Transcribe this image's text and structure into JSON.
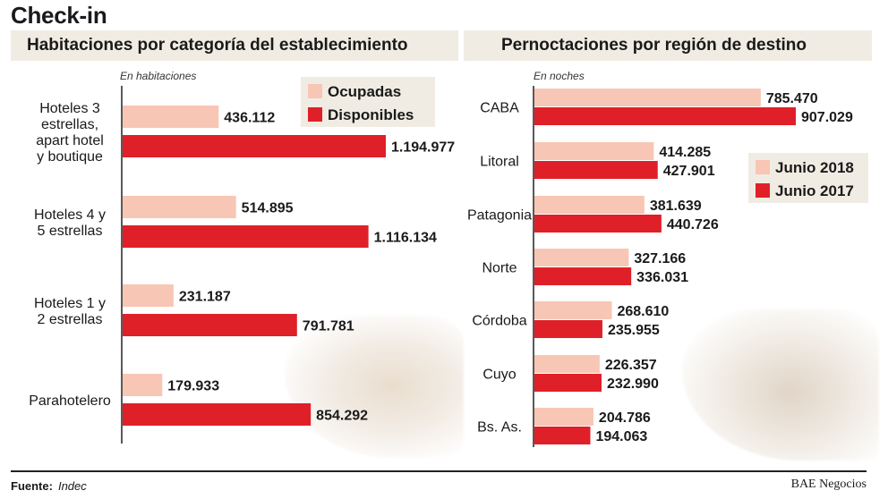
{
  "title": "Check-in",
  "colors": {
    "light": "#f8c6b4",
    "dark": "#e02028"
  },
  "chart_data": [
    {
      "type": "bar",
      "orientation": "horizontal",
      "title": "Habitaciones por categoría del establecimiento",
      "unit_note": "En habitaciones",
      "categories": [
        [
          "Hoteles 3",
          "estrellas,",
          "apart hotel",
          "y boutique"
        ],
        [
          "Hoteles 4 y",
          "5 estrellas"
        ],
        [
          "Hoteles 1 y",
          "2 estrellas"
        ],
        [
          "Parahotelero"
        ]
      ],
      "series": [
        {
          "name": "Ocupadas",
          "color": "#f8c6b4",
          "values": [
            436112,
            514895,
            231187,
            179933
          ],
          "labels": [
            "436.112",
            "514.895",
            "231.187",
            "179.933"
          ]
        },
        {
          "name": "Disponibles",
          "color": "#e02028",
          "values": [
            1194977,
            1116134,
            791781,
            854292
          ],
          "labels": [
            "1.194.977",
            "1.116.134",
            "791.781",
            "854.292"
          ]
        }
      ],
      "legend_position": "top-right"
    },
    {
      "type": "bar",
      "orientation": "horizontal",
      "title": "Pernoctaciones por región de destino",
      "unit_note": "En noches",
      "categories": [
        [
          "CABA"
        ],
        [
          "Litoral"
        ],
        [
          "Patagonia"
        ],
        [
          "Norte"
        ],
        [
          "Córdoba"
        ],
        [
          "Cuyo"
        ],
        [
          "Bs. As."
        ]
      ],
      "series": [
        {
          "name": "Junio 2018",
          "color": "#f8c6b4",
          "values": [
            785470,
            414285,
            381639,
            327166,
            268610,
            226357,
            204786
          ],
          "labels": [
            "785.470",
            "414.285",
            "381.639",
            "327.166",
            "268.610",
            "226.357",
            "204.786"
          ]
        },
        {
          "name": "Junio 2017",
          "color": "#e02028",
          "values": [
            907029,
            427901,
            440726,
            336031,
            235955,
            232990,
            194063
          ],
          "labels": [
            "907.029",
            "427.901",
            "440.726",
            "336.031",
            "235.955",
            "232.990",
            "194.063"
          ]
        }
      ],
      "legend_position": "right"
    }
  ],
  "footer": {
    "source_label": "Fuente:",
    "source_value": "Indec",
    "credit": "BAE Negocios"
  }
}
